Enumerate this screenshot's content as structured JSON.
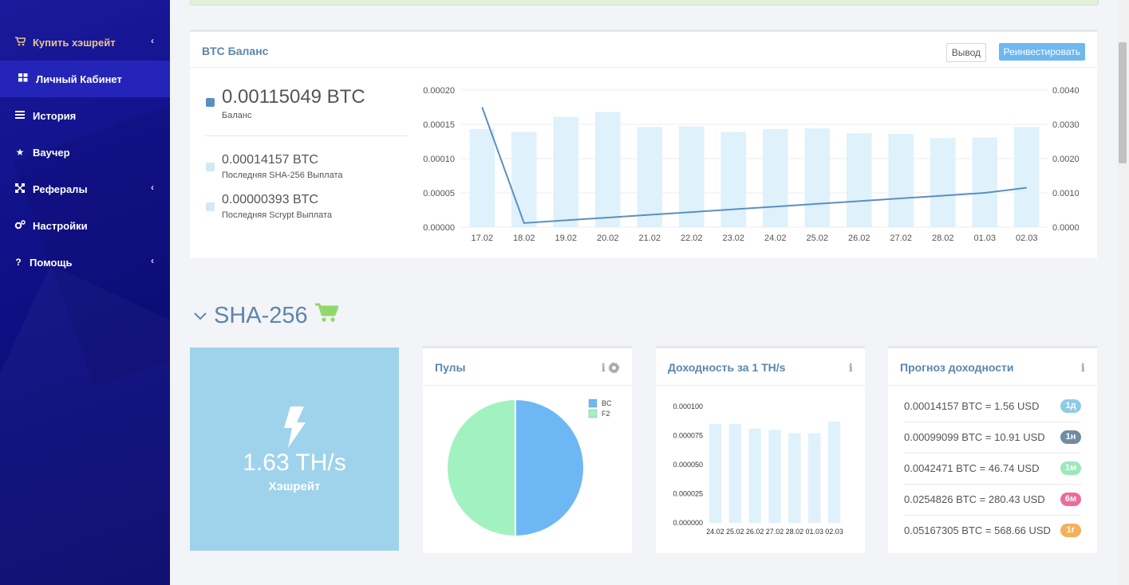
{
  "sidebar": {
    "items": [
      {
        "label": "Купить хэшрейт",
        "icon": "cart-icon"
      },
      {
        "label": "Личный Кабинет",
        "icon": "grid-icon"
      },
      {
        "label": "История",
        "icon": "list-icon"
      },
      {
        "label": "Ваучер",
        "icon": "star-icon"
      },
      {
        "label": "Рефералы",
        "icon": "network-icon"
      },
      {
        "label": "Настройки",
        "icon": "gears-icon"
      },
      {
        "label": "Помощь",
        "icon": "question-icon"
      }
    ]
  },
  "balance_panel": {
    "title": "BTC Баланс",
    "withdraw_label": "Вывод",
    "reinvest_label": "Реинвестировать",
    "balance_value": "0.00115049 BTC",
    "balance_label": "Баланс",
    "sha_value": "0.00014157 BTC",
    "sha_label": "Последняя SHA-256 Выплата",
    "scrypt_value": "0.00000393 BTC",
    "scrypt_label": "Последняя Scrypt Выплата",
    "colors": {
      "balance": "#5b8fc4",
      "payout": "#d4e8f6"
    }
  },
  "section": {
    "title": "SHA-256",
    "icon": "cart-icon"
  },
  "hashrate": {
    "value": "1.63 TH/s",
    "label": "Хэшрейт",
    "icon": "bolt-icon"
  },
  "pools_panel": {
    "title": "Пулы"
  },
  "profit_panel": {
    "title": "Доходность за 1 TH/s"
  },
  "forecast_panel": {
    "title": "Прогноз доходности",
    "rows": [
      {
        "text": "0.00014157 BTC = 1.56 USD",
        "badge": "1д",
        "color": "#8ecbe8"
      },
      {
        "text": "0.00099099 BTC = 10.91 USD",
        "badge": "1н",
        "color": "#6f8ca3"
      },
      {
        "text": "0.0042471 BTC = 46.74 USD",
        "badge": "1м",
        "color": "#9de7b9"
      },
      {
        "text": "0.0254826 BTC = 280.43 USD",
        "badge": "6м",
        "color": "#ec6c9c"
      },
      {
        "text": "0.05167305 BTC = 568.66 USD",
        "badge": "1г",
        "color": "#f4b05b"
      }
    ]
  },
  "chart_data": [
    {
      "type": "bar",
      "categories": [
        "17.02",
        "18.02",
        "19.02",
        "20.02",
        "21.02",
        "22.02",
        "23.02",
        "24.02",
        "25.02",
        "26.02",
        "27.02",
        "28.02",
        "01.03",
        "02.03"
      ],
      "series": [
        {
          "type": "bar",
          "axis": "left",
          "values": [
            0.000143,
            0.000139,
            0.000161,
            0.000168,
            0.000146,
            0.000147,
            0.000139,
            0.000143,
            0.000144,
            0.000137,
            0.000136,
            0.00013,
            0.000131,
            0.000146
          ],
          "color": "#dff1fb"
        },
        {
          "type": "line",
          "axis": "right",
          "values": [
            0.0035,
            0.00012,
            0.0002,
            0.00028,
            0.00036,
            0.00044,
            0.00052,
            0.0006,
            0.00068,
            0.00076,
            0.00084,
            0.00092,
            0.001,
            0.00115
          ],
          "color": "#5b8fc4"
        }
      ],
      "ylim": [
        0,
        0.0002
      ],
      "yticks": [
        "0.00000",
        "0.00005",
        "0.00010",
        "0.00015",
        "0.00020"
      ],
      "y2lim": [
        0,
        0.004
      ],
      "y2ticks": [
        "0.0000",
        "0.0010",
        "0.0020",
        "0.0030",
        "0.0040"
      ],
      "grid": true
    },
    {
      "type": "pie",
      "slices": [
        {
          "name": "BC",
          "value": 50,
          "color": "#6db7f5"
        },
        {
          "name": "F2",
          "value": 50,
          "color": "#a2f2c1"
        }
      ],
      "legend": "top-right"
    },
    {
      "type": "bar",
      "categories": [
        "24.02",
        "25.02",
        "26.02",
        "27.02",
        "28.02",
        "01.03",
        "02.03"
      ],
      "values": [
        8.5e-05,
        8.5e-05,
        8.1e-05,
        8e-05,
        7.7e-05,
        7.7e-05,
        8.7e-05
      ],
      "ylim": [
        0,
        0.0001
      ],
      "yticks": [
        "0.000000",
        "0.000025",
        "0.000050",
        "0.000075",
        "0.000100"
      ],
      "color": "#dff1fb",
      "grid": true
    }
  ]
}
